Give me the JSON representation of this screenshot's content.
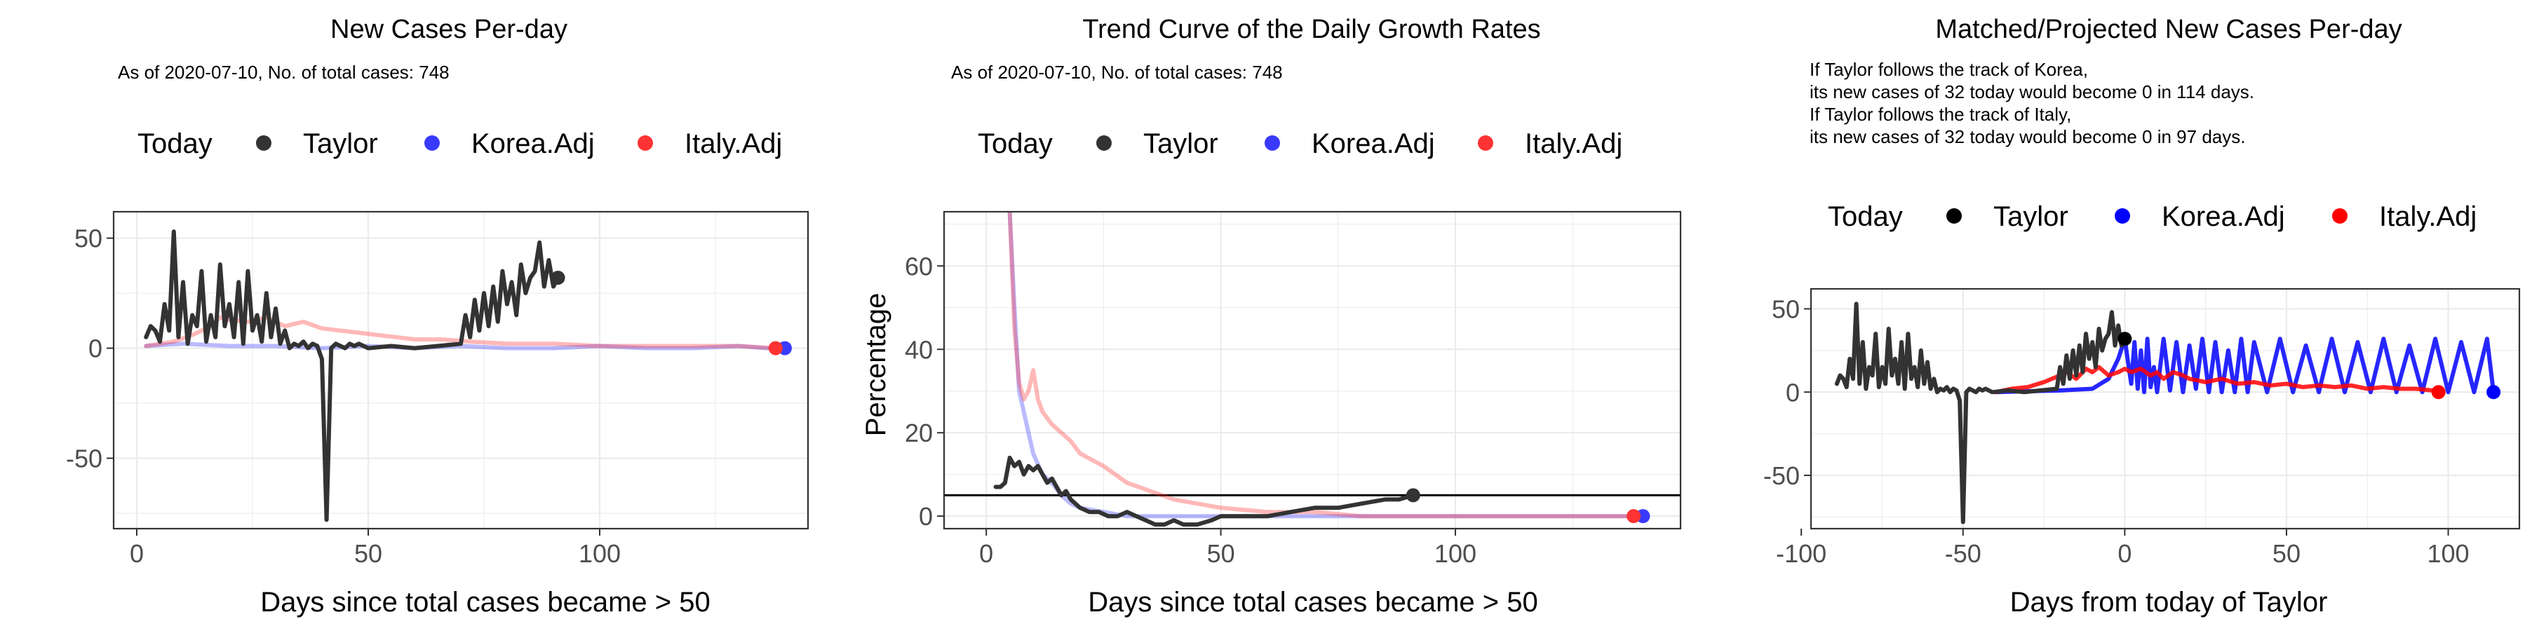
{
  "chart_data": [
    {
      "type": "line",
      "title": "New Cases Per-day",
      "subtitle": "As of 2020-07-10, No. of total cases: 748",
      "legend_title": "Today",
      "legend_placement": "top",
      "legend": [
        {
          "name": "Taylor",
          "color": "#333333"
        },
        {
          "name": "Korea.Adj",
          "color": "#3a3aff"
        },
        {
          "name": "Italy.Adj",
          "color": "#ff3333"
        }
      ],
      "xlabel": "Days since total cases became > 50",
      "ylabel": "",
      "xlim": [
        -5,
        145
      ],
      "ylim": [
        -82,
        62
      ],
      "xticks": [
        0,
        50,
        100
      ],
      "yticks": [
        -50,
        0,
        50
      ],
      "grid": true,
      "series": [
        {
          "name": "Taylor",
          "color": "#333333",
          "opacity": 1,
          "x": [
            2,
            3,
            4,
            5,
            6,
            7,
            8,
            9,
            10,
            11,
            12,
            13,
            14,
            15,
            16,
            17,
            18,
            19,
            20,
            21,
            22,
            23,
            24,
            25,
            26,
            27,
            28,
            29,
            30,
            31,
            32,
            33,
            34,
            35,
            36,
            37,
            38,
            39,
            40,
            41,
            42,
            43,
            44,
            45,
            46,
            47,
            48,
            49,
            50,
            55,
            60,
            65,
            70,
            71,
            72,
            73,
            74,
            75,
            76,
            77,
            78,
            79,
            80,
            81,
            82,
            83,
            84,
            85,
            86,
            87,
            88,
            89,
            90,
            91
          ],
          "y": [
            5,
            10,
            8,
            3,
            20,
            8,
            53,
            5,
            30,
            2,
            15,
            10,
            35,
            3,
            15,
            5,
            38,
            10,
            20,
            5,
            30,
            2,
            35,
            8,
            15,
            3,
            25,
            5,
            18,
            2,
            8,
            0,
            2,
            1,
            3,
            0,
            2,
            1,
            -5,
            -78,
            0,
            2,
            1,
            0,
            2,
            1,
            2,
            1,
            0,
            1,
            0,
            1,
            2,
            15,
            5,
            22,
            8,
            25,
            10,
            28,
            12,
            35,
            20,
            30,
            15,
            38,
            25,
            32,
            35,
            48,
            28,
            40,
            28,
            32
          ]
        },
        {
          "name": "Korea.Adj",
          "color": "#3a3aff",
          "opacity": 0.35,
          "x": [
            2,
            10,
            20,
            30,
            40,
            50,
            60,
            70,
            80,
            90,
            100,
            110,
            120,
            130,
            136,
            140
          ],
          "y": [
            1,
            2,
            1,
            1,
            0,
            1,
            0,
            1,
            0,
            0,
            1,
            0,
            0,
            1,
            0,
            0
          ]
        },
        {
          "name": "Italy.Adj",
          "color": "#ff3333",
          "opacity": 0.35,
          "x": [
            2,
            8,
            12,
            16,
            18,
            20,
            24,
            28,
            32,
            36,
            40,
            44,
            48,
            52,
            56,
            60,
            66,
            72,
            80,
            90,
            100,
            110,
            120,
            130,
            138
          ],
          "y": [
            1,
            3,
            6,
            10,
            14,
            13,
            12,
            14,
            10,
            12,
            9,
            8,
            7,
            6,
            5,
            4,
            4,
            3,
            2,
            2,
            1,
            1,
            1,
            1,
            0
          ]
        }
      ],
      "today_points": [
        {
          "series": "Taylor",
          "x": 91,
          "y": 32,
          "color": "#333333"
        },
        {
          "series": "Korea.Adj",
          "x": 140,
          "y": 0,
          "color": "#3a3aff"
        },
        {
          "series": "Italy.Adj",
          "x": 138,
          "y": 0,
          "color": "#ff3333"
        }
      ]
    },
    {
      "type": "line",
      "title": "Trend Curve of the Daily Growth Rates",
      "subtitle": "As of 2020-07-10, No. of total cases: 748",
      "legend_title": "Today",
      "legend_placement": "top",
      "legend": [
        {
          "name": "Taylor",
          "color": "#333333"
        },
        {
          "name": "Korea.Adj",
          "color": "#3a3aff"
        },
        {
          "name": "Italy.Adj",
          "color": "#ff3333"
        }
      ],
      "xlabel": "Days since total cases became > 50",
      "ylabel": "Percentage",
      "xlim": [
        -9,
        148
      ],
      "ylim": [
        -3,
        73
      ],
      "xticks": [
        0,
        50,
        100
      ],
      "yticks": [
        0,
        20,
        40,
        60
      ],
      "grid": true,
      "hline": 5,
      "series": [
        {
          "name": "Taylor",
          "color": "#333333",
          "opacity": 1,
          "x": [
            2,
            3,
            4,
            5,
            6,
            7,
            8,
            9,
            10,
            11,
            12,
            13,
            14,
            15,
            16,
            17,
            18,
            20,
            22,
            24,
            26,
            28,
            30,
            32,
            34,
            36,
            38,
            40,
            42,
            45,
            48,
            50,
            55,
            60,
            65,
            70,
            75,
            80,
            85,
            88,
            91
          ],
          "y": [
            7,
            7,
            8,
            14,
            12,
            13,
            10,
            12,
            11,
            12,
            10,
            8,
            9,
            7,
            5,
            6,
            4,
            2,
            1,
            1,
            0,
            0,
            1,
            0,
            -1,
            -2,
            -2,
            -1,
            -2,
            -2,
            -1,
            0,
            0,
            0,
            1,
            2,
            2,
            3,
            4,
            4,
            5
          ]
        },
        {
          "name": "Korea.Adj",
          "color": "#3a3aff",
          "opacity": 0.35,
          "x": [
            5,
            6,
            7,
            8,
            9,
            10,
            12,
            14,
            16,
            18,
            20,
            25,
            30,
            35,
            40,
            50,
            60,
            80,
            100,
            120,
            140
          ],
          "y": [
            73,
            50,
            30,
            25,
            20,
            15,
            10,
            8,
            5,
            3,
            2,
            1,
            0,
            0,
            0,
            0,
            0,
            0,
            0,
            0,
            0
          ]
        },
        {
          "name": "Italy.Adj",
          "color": "#ff3333",
          "opacity": 0.35,
          "x": [
            5,
            6,
            7,
            8,
            9,
            10,
            11,
            12,
            14,
            16,
            18,
            20,
            25,
            30,
            35,
            40,
            45,
            50,
            60,
            70,
            80,
            90,
            100,
            120,
            138
          ],
          "y": [
            73,
            45,
            32,
            28,
            30,
            35,
            28,
            25,
            22,
            20,
            18,
            15,
            12,
            8,
            6,
            4,
            3,
            2,
            1,
            1,
            0,
            0,
            0,
            0,
            0
          ]
        }
      ],
      "today_points": [
        {
          "series": "Taylor",
          "x": 91,
          "y": 5,
          "color": "#333333"
        },
        {
          "series": "Korea.Adj",
          "x": 140,
          "y": 0,
          "color": "#3a3aff"
        },
        {
          "series": "Italy.Adj",
          "x": 138,
          "y": 0,
          "color": "#ff3333"
        }
      ]
    },
    {
      "type": "line",
      "title": "Matched/Projected New Cases Per-day",
      "subtitle": "If Taylor follows the track of Korea,\nits new cases of 32 today would become 0 in 114 days.\nIf Taylor follows the track of Italy,\nits new cases of 32 today would become 0 in 97 days.",
      "legend_title": "Today",
      "legend_placement": "top",
      "legend": [
        {
          "name": "Taylor",
          "color": "#000000"
        },
        {
          "name": "Korea.Adj",
          "color": "#0000ff"
        },
        {
          "name": "Italy.Adj",
          "color": "#ff0000"
        }
      ],
      "xlabel": "Days from today of Taylor",
      "ylabel": "",
      "xlim": [
        -97,
        122
      ],
      "ylim": [
        -82,
        62
      ],
      "xticks": [
        -100,
        -50,
        0,
        50,
        100
      ],
      "yticks": [
        -50,
        0,
        50
      ],
      "grid": true,
      "series": [
        {
          "name": "Taylor",
          "color": "#333333",
          "opacity": 1,
          "x": [
            -89,
            -88,
            -87,
            -86,
            -85,
            -84,
            -83,
            -82,
            -81,
            -80,
            -79,
            -78,
            -77,
            -76,
            -75,
            -74,
            -73,
            -72,
            -71,
            -70,
            -69,
            -68,
            -67,
            -66,
            -65,
            -64,
            -63,
            -62,
            -61,
            -60,
            -59,
            -58,
            -57,
            -56,
            -55,
            -54,
            -53,
            -52,
            -51,
            -50,
            -49,
            -48,
            -47,
            -46,
            -45,
            -44,
            -43,
            -42,
            -41,
            -36,
            -31,
            -26,
            -21,
            -20,
            -19,
            -18,
            -17,
            -16,
            -15,
            -14,
            -13,
            -12,
            -11,
            -10,
            -9,
            -8,
            -7,
            -6,
            -5,
            -4,
            -3,
            -2,
            -1,
            0
          ],
          "y": [
            5,
            10,
            8,
            3,
            20,
            8,
            53,
            5,
            30,
            2,
            15,
            10,
            35,
            3,
            15,
            5,
            38,
            10,
            20,
            5,
            30,
            2,
            35,
            8,
            15,
            3,
            25,
            5,
            18,
            2,
            8,
            0,
            2,
            1,
            3,
            0,
            2,
            1,
            -5,
            -78,
            0,
            2,
            1,
            0,
            2,
            1,
            2,
            1,
            0,
            1,
            0,
            1,
            2,
            15,
            5,
            22,
            8,
            25,
            10,
            28,
            12,
            35,
            20,
            30,
            15,
            38,
            25,
            32,
            35,
            48,
            28,
            40,
            28,
            32
          ]
        },
        {
          "name": "Korea.Adj",
          "color": "#0000ff",
          "opacity": 0.85,
          "x": [
            -40,
            -20,
            -10,
            -5,
            -2,
            0,
            1,
            2,
            3,
            4,
            5,
            6,
            7,
            8,
            9,
            10,
            12,
            14,
            16,
            18,
            20,
            22,
            24,
            26,
            28,
            30,
            32,
            34,
            36,
            38,
            40,
            44,
            48,
            52,
            56,
            60,
            64,
            68,
            72,
            76,
            80,
            84,
            88,
            92,
            96,
            100,
            104,
            108,
            112,
            114
          ],
          "y": [
            0,
            1,
            2,
            8,
            20,
            32,
            18,
            5,
            30,
            2,
            25,
            0,
            32,
            3,
            15,
            0,
            32,
            1,
            30,
            0,
            28,
            2,
            32,
            0,
            30,
            0,
            25,
            0,
            32,
            0,
            30,
            0,
            32,
            0,
            28,
            0,
            32,
            0,
            30,
            0,
            32,
            0,
            28,
            0,
            32,
            0,
            30,
            0,
            32,
            0
          ]
        },
        {
          "name": "Italy.Adj",
          "color": "#ff0000",
          "opacity": 0.85,
          "x": [
            -40,
            -35,
            -30,
            -25,
            -20,
            -18,
            -15,
            -12,
            -10,
            -8,
            -5,
            -2,
            0,
            2,
            5,
            8,
            10,
            12,
            15,
            18,
            20,
            25,
            30,
            35,
            40,
            45,
            50,
            55,
            60,
            65,
            70,
            75,
            80,
            85,
            90,
            95,
            97
          ],
          "y": [
            0,
            2,
            3,
            6,
            10,
            12,
            8,
            14,
            12,
            15,
            10,
            12,
            14,
            12,
            14,
            10,
            12,
            8,
            12,
            10,
            8,
            6,
            8,
            5,
            6,
            4,
            5,
            3,
            4,
            3,
            4,
            2,
            3,
            2,
            2,
            1,
            0
          ]
        }
      ],
      "today_points": [
        {
          "series": "Taylor",
          "x": 0,
          "y": 32,
          "color": "#000000"
        },
        {
          "series": "Korea.Adj",
          "x": 114,
          "y": 0,
          "color": "#0000ff"
        },
        {
          "series": "Italy.Adj",
          "x": 97,
          "y": 0,
          "color": "#ff0000"
        }
      ]
    }
  ]
}
